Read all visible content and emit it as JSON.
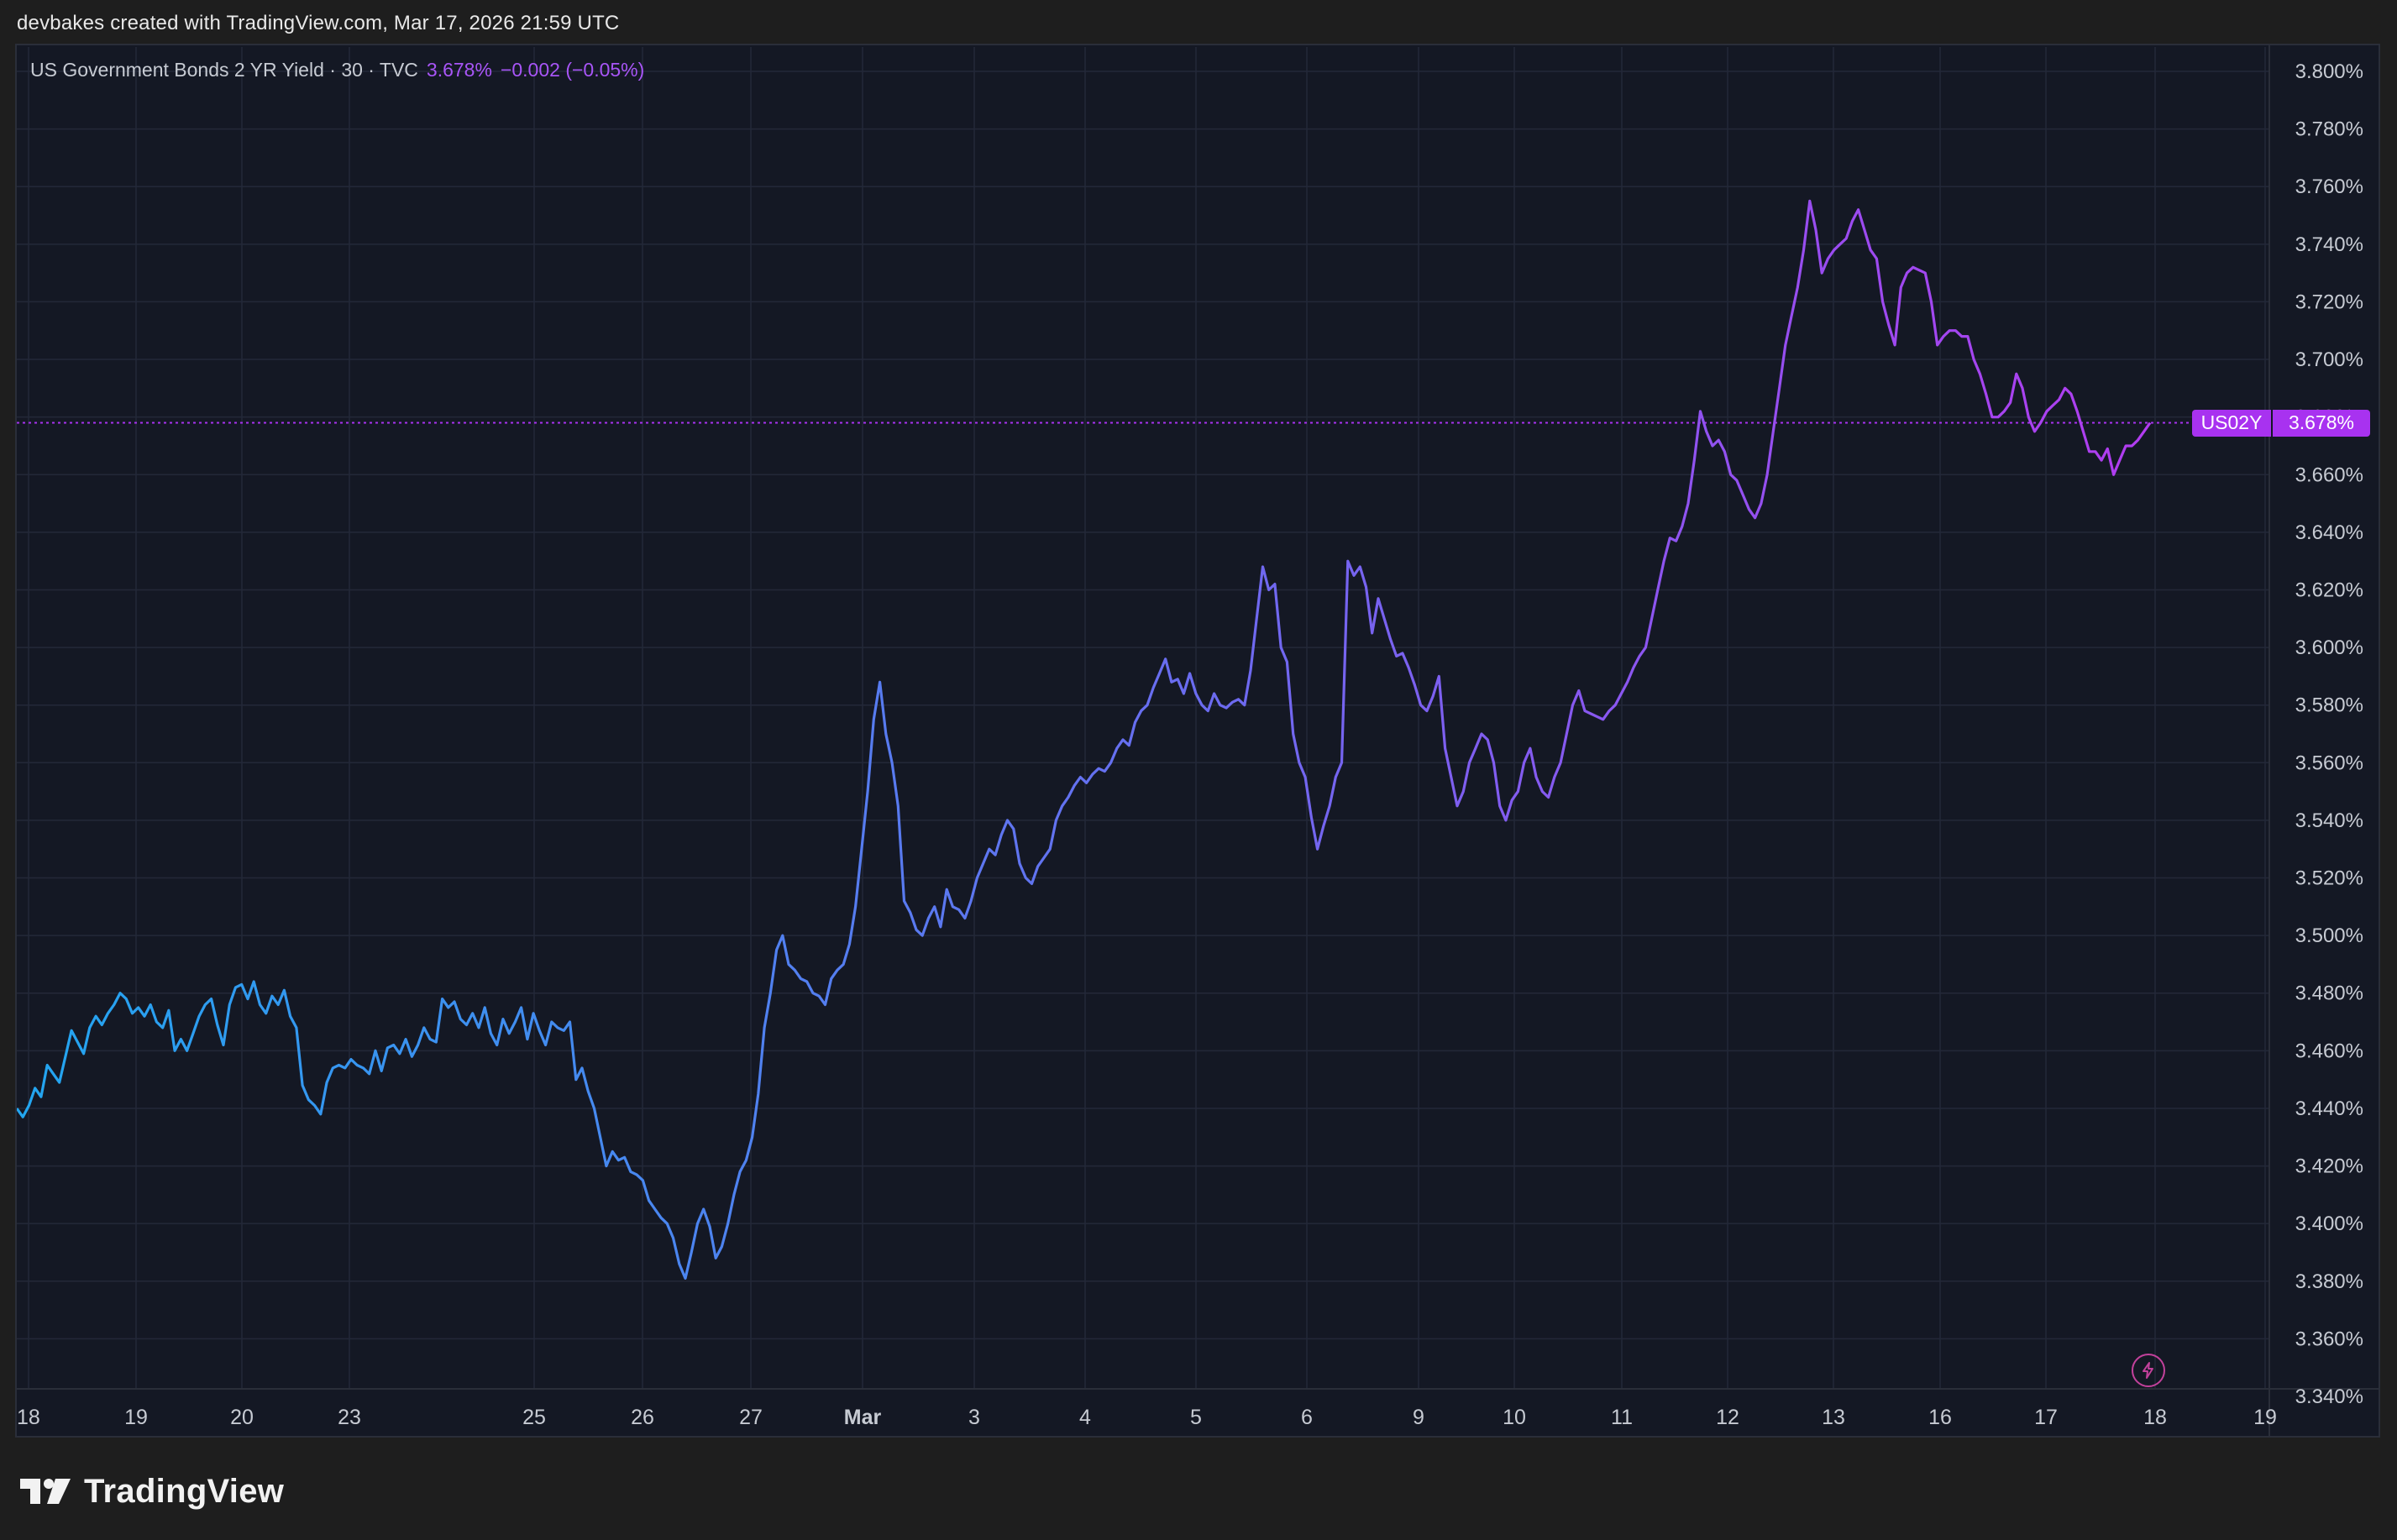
{
  "header": {
    "attribution": "devbakes created with TradingView.com, Mar 17, 2026 21:59 UTC"
  },
  "legend": {
    "title": "US Government Bonds 2 YR Yield · 30 · TVC",
    "last_value": "3.678%",
    "change": "−0.002 (−0.05%)"
  },
  "price_tag": {
    "symbol": "US02Y",
    "value": "3.678%"
  },
  "brand": {
    "name": "TradingView"
  },
  "colors": {
    "background": "#141824",
    "grid": "#232838",
    "line_start": "#22a6f0",
    "line_mid": "#6a6cf0",
    "line_end": "#b23cf0",
    "accent": "#a832f0",
    "axis_text": "#c7cbd3"
  },
  "icons": {
    "flash": "lightning-bolt-icon"
  },
  "chart_data": {
    "type": "line",
    "title": "US Government Bonds 2 YR Yield · 30 · TVC",
    "xlabel": "",
    "ylabel": "",
    "ylim": [
      3.34,
      3.8
    ],
    "y_ticks": [
      3.34,
      3.36,
      3.38,
      3.4,
      3.42,
      3.44,
      3.46,
      3.48,
      3.5,
      3.52,
      3.54,
      3.56,
      3.58,
      3.6,
      3.62,
      3.64,
      3.66,
      3.68,
      3.7,
      3.72,
      3.74,
      3.76,
      3.78,
      3.8
    ],
    "y_tick_labels": [
      "3.340%",
      "3.360%",
      "3.380%",
      "3.400%",
      "3.420%",
      "3.440%",
      "3.460%",
      "3.480%",
      "3.500%",
      "3.520%",
      "3.540%",
      "3.560%",
      "3.580%",
      "3.600%",
      "3.620%",
      "3.640%",
      "3.660%",
      "3.680%",
      "3.700%",
      "3.720%",
      "3.740%",
      "3.760%",
      "3.780%",
      "3.800%"
    ],
    "x_ticks": [
      {
        "label": "18",
        "bold": false
      },
      {
        "label": "19",
        "bold": false
      },
      {
        "label": "20",
        "bold": false
      },
      {
        "label": "23",
        "bold": false
      },
      {
        "label": "25",
        "bold": false
      },
      {
        "label": "26",
        "bold": false
      },
      {
        "label": "27",
        "bold": false
      },
      {
        "label": "Mar",
        "bold": true
      },
      {
        "label": "3",
        "bold": false
      },
      {
        "label": "4",
        "bold": false
      },
      {
        "label": "5",
        "bold": false
      },
      {
        "label": "6",
        "bold": false
      },
      {
        "label": "9",
        "bold": false
      },
      {
        "label": "10",
        "bold": false
      },
      {
        "label": "11",
        "bold": false
      },
      {
        "label": "12",
        "bold": false
      },
      {
        "label": "13",
        "bold": false
      },
      {
        "label": "16",
        "bold": false
      },
      {
        "label": "17",
        "bold": false
      },
      {
        "label": "18",
        "bold": false
      },
      {
        "label": "19",
        "bold": false
      }
    ],
    "grid": true,
    "last_value": 3.678,
    "series": [
      {
        "values": [
          3.44,
          3.437,
          3.441,
          3.447,
          3.444,
          3.455,
          3.452,
          3.449,
          3.458,
          3.467,
          3.463,
          3.459,
          3.468,
          3.472,
          3.469,
          3.473,
          3.476,
          3.48,
          3.478,
          3.473,
          3.475,
          3.472,
          3.476,
          3.47,
          3.468,
          3.474,
          3.46,
          3.464,
          3.46,
          3.466,
          3.472,
          3.476,
          3.478,
          3.469,
          3.462,
          3.476,
          3.482,
          3.483,
          3.478,
          3.484,
          3.476,
          3.473,
          3.479,
          3.476,
          3.481,
          3.472,
          3.468,
          3.448,
          3.443,
          3.441,
          3.438,
          3.449,
          3.454,
          3.455,
          3.454,
          3.457,
          3.455,
          3.454,
          3.452,
          3.46,
          3.453,
          3.461,
          3.462,
          3.459,
          3.464,
          3.458,
          3.462,
          3.468,
          3.464,
          3.463,
          3.478,
          3.475,
          3.477,
          3.471,
          3.469,
          3.473,
          3.468,
          3.475,
          3.466,
          3.462,
          3.471,
          3.466,
          3.47,
          3.475,
          3.464,
          3.473,
          3.467,
          3.462,
          3.47,
          3.468,
          3.467,
          3.47,
          3.45,
          3.454,
          3.446,
          3.44,
          3.43,
          3.42,
          3.425,
          3.422,
          3.423,
          3.418,
          3.417,
          3.415,
          3.408,
          3.405,
          3.402,
          3.4,
          3.395,
          3.386,
          3.381,
          3.39,
          3.4,
          3.405,
          3.399,
          3.388,
          3.392,
          3.4,
          3.41,
          3.418,
          3.422,
          3.43,
          3.445,
          3.468,
          3.48,
          3.495,
          3.5,
          3.49,
          3.488,
          3.485,
          3.484,
          3.48,
          3.479,
          3.476,
          3.485,
          3.488,
          3.49,
          3.497,
          3.51,
          3.53,
          3.55,
          3.575,
          3.588,
          3.57,
          3.56,
          3.545,
          3.512,
          3.508,
          3.502,
          3.5,
          3.506,
          3.51,
          3.503,
          3.516,
          3.51,
          3.509,
          3.506,
          3.512,
          3.52,
          3.525,
          3.53,
          3.528,
          3.535,
          3.54,
          3.537,
          3.525,
          3.52,
          3.518,
          3.524,
          3.527,
          3.53,
          3.54,
          3.545,
          3.548,
          3.552,
          3.555,
          3.553,
          3.556,
          3.558,
          3.557,
          3.56,
          3.565,
          3.568,
          3.566,
          3.574,
          3.578,
          3.58,
          3.586,
          3.591,
          3.596,
          3.588,
          3.589,
          3.584,
          3.591,
          3.584,
          3.58,
          3.578,
          3.584,
          3.58,
          3.579,
          3.581,
          3.582,
          3.58,
          3.592,
          3.61,
          3.628,
          3.62,
          3.622,
          3.6,
          3.595,
          3.57,
          3.56,
          3.555,
          3.541,
          3.53,
          3.538,
          3.545,
          3.555,
          3.56,
          3.63,
          3.625,
          3.628,
          3.621,
          3.605,
          3.617,
          3.61,
          3.603,
          3.597,
          3.598,
          3.593,
          3.587,
          3.58,
          3.578,
          3.583,
          3.59,
          3.565,
          3.555,
          3.545,
          3.55,
          3.56,
          3.565,
          3.57,
          3.568,
          3.56,
          3.545,
          3.54,
          3.547,
          3.55,
          3.56,
          3.565,
          3.555,
          3.55,
          3.548,
          3.555,
          3.56,
          3.57,
          3.58,
          3.585,
          3.578,
          3.577,
          3.576,
          3.575,
          3.578,
          3.58,
          3.584,
          3.588,
          3.593,
          3.597,
          3.6,
          3.61,
          3.62,
          3.63,
          3.638,
          3.637,
          3.642,
          3.65,
          3.665,
          3.682,
          3.675,
          3.67,
          3.672,
          3.668,
          3.66,
          3.658,
          3.653,
          3.648,
          3.645,
          3.65,
          3.66,
          3.675,
          3.69,
          3.705,
          3.715,
          3.725,
          3.738,
          3.755,
          3.745,
          3.73,
          3.735,
          3.738,
          3.74,
          3.742,
          3.748,
          3.752,
          3.745,
          3.738,
          3.735,
          3.72,
          3.712,
          3.705,
          3.725,
          3.73,
          3.732,
          3.731,
          3.73,
          3.72,
          3.705,
          3.708,
          3.71,
          3.71,
          3.708,
          3.708,
          3.7,
          3.695,
          3.688,
          3.68,
          3.68,
          3.682,
          3.685,
          3.695,
          3.69,
          3.68,
          3.675,
          3.678,
          3.682,
          3.684,
          3.686,
          3.69,
          3.688,
          3.682,
          3.675,
          3.668,
          3.668,
          3.665,
          3.669,
          3.66,
          3.665,
          3.67,
          3.67,
          3.672,
          3.675,
          3.678
        ]
      }
    ]
  }
}
